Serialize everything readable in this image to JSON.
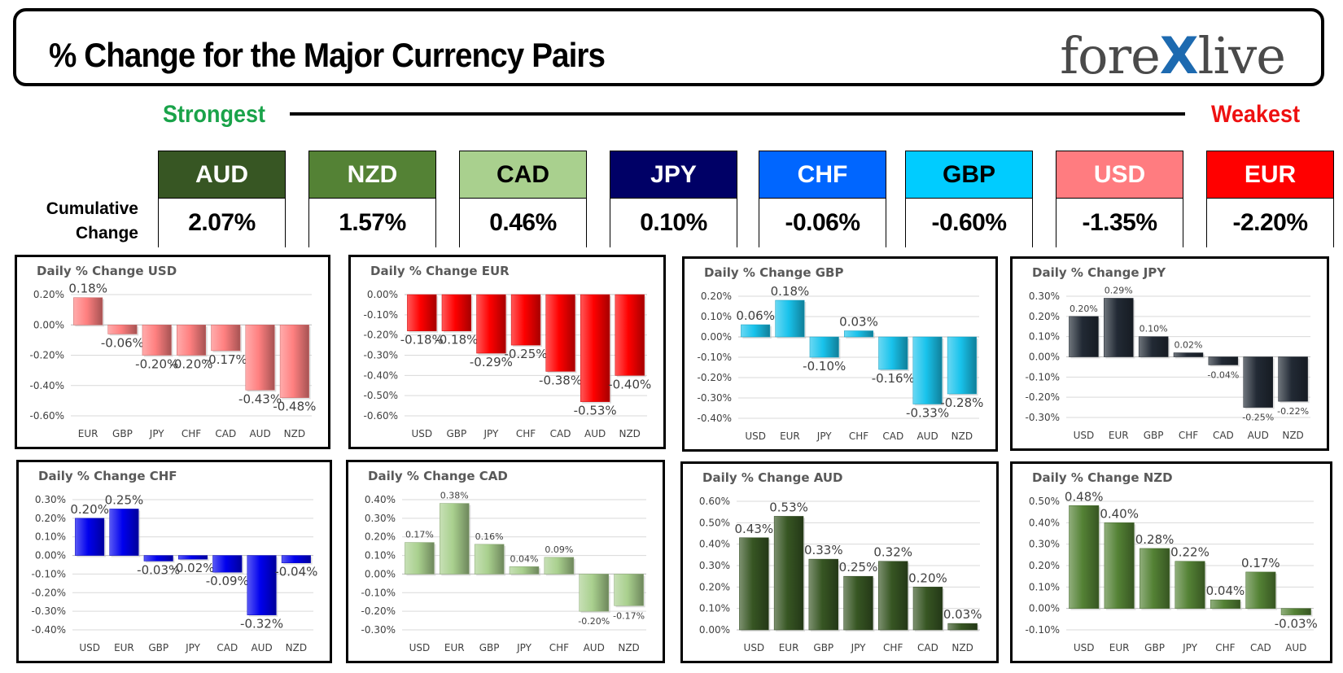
{
  "header": {
    "title": "% Change for the Major Currency Pairs",
    "logo_left": "fore",
    "logo_x": "X",
    "logo_right": "live"
  },
  "scale": {
    "strongest": "Strongest",
    "weakest": "Weakest"
  },
  "cumulative_label_1": "Cumulative",
  "cumulative_label_2": "Change",
  "currencies": [
    {
      "code": "AUD",
      "value": "2.07%",
      "bg": "#375623",
      "fg": "#ffffff"
    },
    {
      "code": "NZD",
      "value": "1.57%",
      "bg": "#548235",
      "fg": "#ffffff"
    },
    {
      "code": "CAD",
      "value": "0.46%",
      "bg": "#a9d08e",
      "fg": "#000000"
    },
    {
      "code": "JPY",
      "value": "0.10%",
      "bg": "#000066",
      "fg": "#ffffff"
    },
    {
      "code": "CHF",
      "value": "-0.06%",
      "bg": "#0066ff",
      "fg": "#ffffff"
    },
    {
      "code": "GBP",
      "value": "-0.60%",
      "bg": "#00ccff",
      "fg": "#000000"
    },
    {
      "code": "USD",
      "value": "-1.35%",
      "bg": "#ff7c80",
      "fg": "#ffffff"
    },
    {
      "code": "EUR",
      "value": "-2.20%",
      "bg": "#ff0000",
      "fg": "#ffffff"
    }
  ],
  "chart_data": [
    {
      "type": "bar",
      "title": "Daily % Change USD",
      "categories": [
        "EUR",
        "GBP",
        "JPY",
        "CHF",
        "CAD",
        "AUD",
        "NZD"
      ],
      "values": [
        0.18,
        -0.06,
        -0.2,
        -0.2,
        -0.17,
        -0.43,
        -0.48
      ],
      "labels": [
        "0.18%",
        "-0.06%",
        "-0.20%",
        "-0.20%",
        "-0.17%",
        "-0.43%",
        "-0.48%"
      ],
      "yticks": [
        0.2,
        0,
        -0.2,
        -0.4,
        -0.6
      ],
      "ytick_labels": [
        "0.20%",
        "0.00%",
        "-0.20%",
        "-0.40%",
        "-0.60%"
      ],
      "ylim": [
        -0.6,
        0.2
      ],
      "color": "#ff8080",
      "label_font": 15,
      "grid": true
    },
    {
      "type": "bar",
      "title": "Daily % Change EUR",
      "categories": [
        "USD",
        "GBP",
        "JPY",
        "CHF",
        "CAD",
        "AUD",
        "NZD"
      ],
      "values": [
        -0.18,
        -0.18,
        -0.29,
        -0.25,
        -0.38,
        -0.53,
        -0.4
      ],
      "labels": [
        "-0.18%",
        "-0.18%",
        "-0.29%",
        "-0.25%",
        "-0.38%",
        "-0.53%",
        "-0.40%"
      ],
      "yticks": [
        0,
        -0.1,
        -0.2,
        -0.3,
        -0.4,
        -0.5,
        -0.6
      ],
      "ytick_labels": [
        "0.00%",
        "-0.10%",
        "-0.20%",
        "-0.30%",
        "-0.40%",
        "-0.50%",
        "-0.60%"
      ],
      "ylim": [
        -0.6,
        0
      ],
      "color": "#ff0000",
      "label_font": 15,
      "grid": true
    },
    {
      "type": "bar",
      "title": "Daily % Change GBP",
      "categories": [
        "USD",
        "EUR",
        "JPY",
        "CHF",
        "CAD",
        "AUD",
        "NZD"
      ],
      "values": [
        0.06,
        0.18,
        -0.1,
        0.03,
        -0.16,
        -0.33,
        -0.28
      ],
      "labels": [
        "0.06%",
        "0.18%",
        "-0.10%",
        "0.03%",
        "-0.16%",
        "-0.33%",
        "-0.28%"
      ],
      "yticks": [
        0.2,
        0.1,
        0,
        -0.1,
        -0.2,
        -0.3,
        -0.4
      ],
      "ytick_labels": [
        "0.20%",
        "0.10%",
        "0.00%",
        "-0.10%",
        "-0.20%",
        "-0.30%",
        "-0.40%"
      ],
      "ylim": [
        -0.4,
        0.2
      ],
      "color": "#19c3ec",
      "label_font": 15,
      "grid": true
    },
    {
      "type": "bar",
      "title": "Daily % Change JPY",
      "categories": [
        "USD",
        "EUR",
        "GBP",
        "CHF",
        "CAD",
        "AUD",
        "NZD"
      ],
      "values": [
        0.2,
        0.29,
        0.1,
        0.02,
        -0.04,
        -0.25,
        -0.22
      ],
      "labels": [
        "0.20%",
        "0.29%",
        "0.10%",
        "0.02%",
        "-0.04%",
        "-0.25%",
        "-0.22%"
      ],
      "yticks": [
        0.3,
        0.2,
        0.1,
        0,
        -0.1,
        -0.2,
        -0.3
      ],
      "ytick_labels": [
        "0.30%",
        "0.20%",
        "0.10%",
        "0.00%",
        "-0.10%",
        "-0.20%",
        "-0.30%"
      ],
      "ylim": [
        -0.3,
        0.3
      ],
      "color": "#222a35",
      "label_font": 11,
      "grid": true
    },
    {
      "type": "bar",
      "title": "Daily % Change CHF",
      "categories": [
        "USD",
        "EUR",
        "GBP",
        "JPY",
        "CAD",
        "AUD",
        "NZD"
      ],
      "values": [
        0.2,
        0.25,
        -0.03,
        -0.02,
        -0.09,
        -0.32,
        -0.04
      ],
      "labels": [
        "0.20%",
        "0.25%",
        "-0.03%",
        "-0.02%",
        "-0.09%",
        "-0.32%",
        "-0.04%"
      ],
      "yticks": [
        0.3,
        0.2,
        0.1,
        0,
        -0.1,
        -0.2,
        -0.3,
        -0.4
      ],
      "ytick_labels": [
        "0.30%",
        "0.20%",
        "0.10%",
        "0.00%",
        "-0.10%",
        "-0.20%",
        "-0.30%",
        "-0.40%"
      ],
      "ylim": [
        -0.4,
        0.3
      ],
      "color": "#0000ee",
      "label_font": 15,
      "grid": true
    },
    {
      "type": "bar",
      "title": "Daily % Change CAD",
      "categories": [
        "USD",
        "EUR",
        "GBP",
        "JPY",
        "CHF",
        "AUD",
        "NZD"
      ],
      "values": [
        0.17,
        0.38,
        0.16,
        0.04,
        0.09,
        -0.2,
        -0.17
      ],
      "labels": [
        "0.17%",
        "0.38%",
        "0.16%",
        "0.04%",
        "0.09%",
        "-0.20%",
        "-0.17%"
      ],
      "yticks": [
        0.4,
        0.3,
        0.2,
        0.1,
        0,
        -0.1,
        -0.2,
        -0.3
      ],
      "ytick_labels": [
        "0.40%",
        "0.30%",
        "0.20%",
        "0.10%",
        "0.00%",
        "-0.10%",
        "-0.20%",
        "-0.30%"
      ],
      "ylim": [
        -0.3,
        0.4
      ],
      "color": "#a9d08e",
      "label_font": 11,
      "grid": true
    },
    {
      "type": "bar",
      "title": "Daily % Change AUD",
      "categories": [
        "USD",
        "EUR",
        "GBP",
        "JPY",
        "CHF",
        "CAD",
        "NZD"
      ],
      "values": [
        0.43,
        0.53,
        0.33,
        0.25,
        0.32,
        0.2,
        0.03
      ],
      "labels": [
        "0.43%",
        "0.53%",
        "0.33%",
        "0.25%",
        "0.32%",
        "0.20%",
        "0.03%"
      ],
      "yticks": [
        0.6,
        0.5,
        0.4,
        0.3,
        0.2,
        0.1,
        0
      ],
      "ytick_labels": [
        "0.60%",
        "0.50%",
        "0.40%",
        "0.30%",
        "0.20%",
        "0.10%",
        "0.00%"
      ],
      "ylim": [
        0,
        0.6
      ],
      "color": "#375623",
      "label_font": 15,
      "grid": true
    },
    {
      "type": "bar",
      "title": "Daily % Change NZD",
      "categories": [
        "USD",
        "EUR",
        "GBP",
        "JPY",
        "CHF",
        "CAD",
        "AUD"
      ],
      "values": [
        0.48,
        0.4,
        0.28,
        0.22,
        0.04,
        0.17,
        -0.03
      ],
      "labels": [
        "0.48%",
        "0.40%",
        "0.28%",
        "0.22%",
        "0.04%",
        "0.17%",
        "-0.03%"
      ],
      "yticks": [
        0.5,
        0.4,
        0.3,
        0.2,
        0.1,
        0,
        -0.1
      ],
      "ytick_labels": [
        "0.50%",
        "0.40%",
        "0.30%",
        "0.20%",
        "0.10%",
        "0.00%",
        "-0.10%"
      ],
      "ylim": [
        -0.1,
        0.5
      ],
      "color": "#548235",
      "label_font": 15,
      "grid": true
    }
  ]
}
